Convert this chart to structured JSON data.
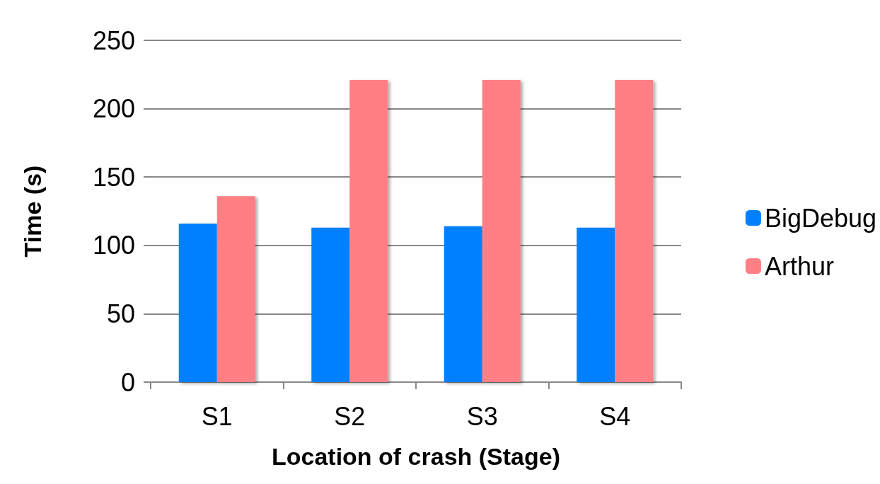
{
  "chart_data": {
    "type": "bar",
    "xlabel": "Location of crash (Stage)",
    "ylabel": "Time (s)",
    "categories": [
      "S1",
      "S2",
      "S3",
      "S4"
    ],
    "series": [
      {
        "name": "BigDebug",
        "color": "#0080ff",
        "values": [
          116,
          113,
          114,
          113
        ]
      },
      {
        "name": "Arthur",
        "color": "#ff7f85",
        "values": [
          136,
          221,
          221,
          221
        ]
      }
    ],
    "ylim": [
      0,
      250
    ],
    "yticks": [
      0,
      50,
      100,
      150,
      200,
      250
    ],
    "grid": "y",
    "legend": "right"
  }
}
